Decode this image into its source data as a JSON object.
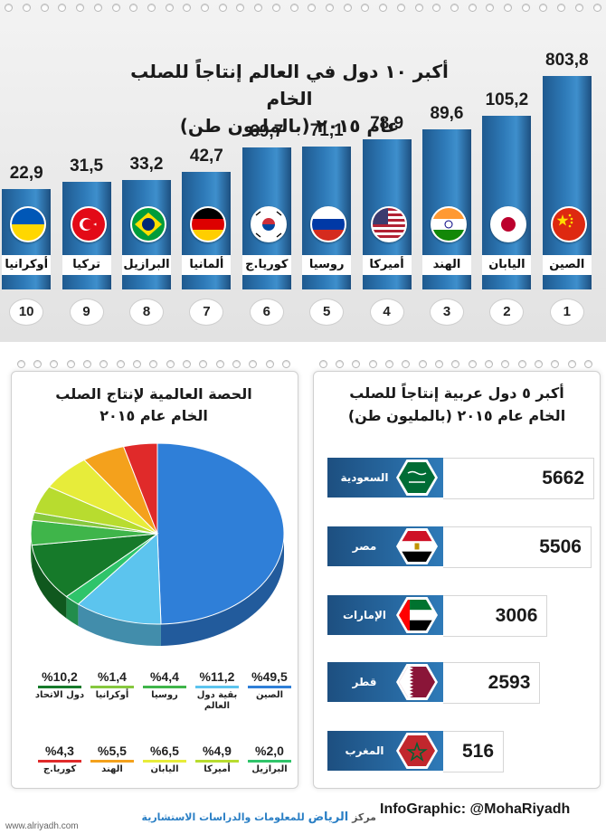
{
  "top": {
    "title_line1": "أكبر ١٠ دول في العالم إنتاجاً للصلب الخام",
    "title_line2": "عام ٢٠١٥ (بالمليون طن)"
  },
  "chart_data": [
    {
      "type": "bar",
      "title": "أكبر ١٠ دول في العالم إنتاجاً للصلب الخام عام ٢٠١٥ (بالمليون طن)",
      "categories": [
        "الصين",
        "اليابان",
        "الهند",
        "أميركا",
        "روسيا",
        "كوريا.ج",
        "ألمانيا",
        "البرازيل",
        "تركيا",
        "أوكرانيا"
      ],
      "value_labels": [
        "803,8",
        "105,2",
        "89,6",
        "78,9",
        "71,1",
        "69,7",
        "42,7",
        "33,2",
        "31,5",
        "22,9"
      ],
      "values": [
        803.8,
        105.2,
        89.6,
        78.9,
        71.1,
        69.7,
        42.7,
        33.2,
        31.5,
        22.9
      ],
      "ranks": [
        "1",
        "2",
        "3",
        "4",
        "5",
        "6",
        "7",
        "8",
        "9",
        "10"
      ],
      "flags": [
        "china-flag",
        "japan-flag",
        "india-flag",
        "usa-flag",
        "russia-flag",
        "south-korea-flag",
        "germany-flag",
        "brazil-flag",
        "turkey-flag",
        "ukraine-flag"
      ]
    },
    {
      "type": "pie",
      "title": "الحصة العالمية لإنتاج الصلب الخام عام ٢٠١٥",
      "slices": [
        {
          "label": "الصين",
          "pct_label": "%49,5",
          "value": 49.5,
          "color": "#2f7fd8"
        },
        {
          "label": "بقية دول العالم",
          "pct_label": "%11,2",
          "value": 11.2,
          "color": "#5cc4ee"
        },
        {
          "label": "البرازيل",
          "pct_label": "%2,0",
          "value": 2.0,
          "color": "#2fc46a"
        },
        {
          "label": "دول الاتحاد",
          "pct_label": "%10,2",
          "value": 10.2,
          "color": "#167a2a"
        },
        {
          "label": "روسيا",
          "pct_label": "%4,4",
          "value": 4.4,
          "color": "#3fb54a"
        },
        {
          "label": "أوكرانيا",
          "pct_label": "%1,4",
          "value": 1.4,
          "color": "#86c83e"
        },
        {
          "label": "أميركا",
          "pct_label": "%4,9",
          "value": 4.9,
          "color": "#b8dc2f"
        },
        {
          "label": "اليابان",
          "pct_label": "%6,5",
          "value": 6.5,
          "color": "#e7ec3a"
        },
        {
          "label": "الهند",
          "pct_label": "%5,5",
          "value": 5.5,
          "color": "#f4a11c"
        },
        {
          "label": "كوريا.ج",
          "pct_label": "%4,3",
          "value": 4.3,
          "color": "#e02a2a"
        }
      ]
    },
    {
      "type": "bar",
      "title": "أكبر ٥ دول عربية إنتاجاً للصلب الخام عام ٢٠١٥ (بالمليون طن)",
      "categories": [
        "السعودية",
        "مصر",
        "الإمارات",
        "قطر",
        "المغرب"
      ],
      "values": [
        5662,
        5506,
        3006,
        2593,
        516
      ],
      "value_labels": [
        "5662",
        "5506",
        "3006",
        "2593",
        "516"
      ],
      "flags": [
        "saudi-flag",
        "egypt-flag",
        "uae-flag",
        "qatar-flag",
        "morocco-flag"
      ]
    }
  ],
  "pie_title_line1": "الحصة العالمية لإنتاج الصلب",
  "pie_title_line2": "الخام عام ٢٠١٥",
  "arab_title_line1": "أكبر ٥ دول عربية إنتاجاً للصلب",
  "arab_title_line2": "الخام عام ٢٠١٥ (بالمليون طن)",
  "legend_rows": [
    [
      {
        "pct": "%49,5",
        "label": "الصين",
        "color": "#2f7fd8"
      },
      {
        "pct": "%11,2",
        "label": "بقية دول العالم",
        "color": "#5cc4ee"
      },
      {
        "pct": "%4,4",
        "label": "روسيا",
        "color": "#3fb54a"
      },
      {
        "pct": "%1,4",
        "label": "أوكرانيا",
        "color": "#86c83e"
      },
      {
        "pct": "%10,2",
        "label": "دول الاتحاد",
        "color": "#167a2a"
      }
    ],
    [
      {
        "pct": "%2,0",
        "label": "البرازيل",
        "color": "#2fc46a"
      },
      {
        "pct": "%4,9",
        "label": "أميركا",
        "color": "#b8dc2f"
      },
      {
        "pct": "%6,5",
        "label": "اليابان",
        "color": "#e7ec3a"
      },
      {
        "pct": "%5,5",
        "label": "الهند",
        "color": "#f4a11c"
      },
      {
        "pct": "%4,3",
        "label": "كوريا.ج",
        "color": "#e02a2a"
      }
    ]
  ],
  "footer": {
    "credit": "InfoGraphic: @MohaRiyadh",
    "center_prefix": "مركز",
    "center_brand": "الرياض",
    "center_suffix": "للمعلومات والدراسات الاستشارية",
    "watermark": "www.alriyadh.com"
  },
  "colors": {
    "bar_blue": "#2e7ab8",
    "panel_gray": "#e6e6e6"
  }
}
